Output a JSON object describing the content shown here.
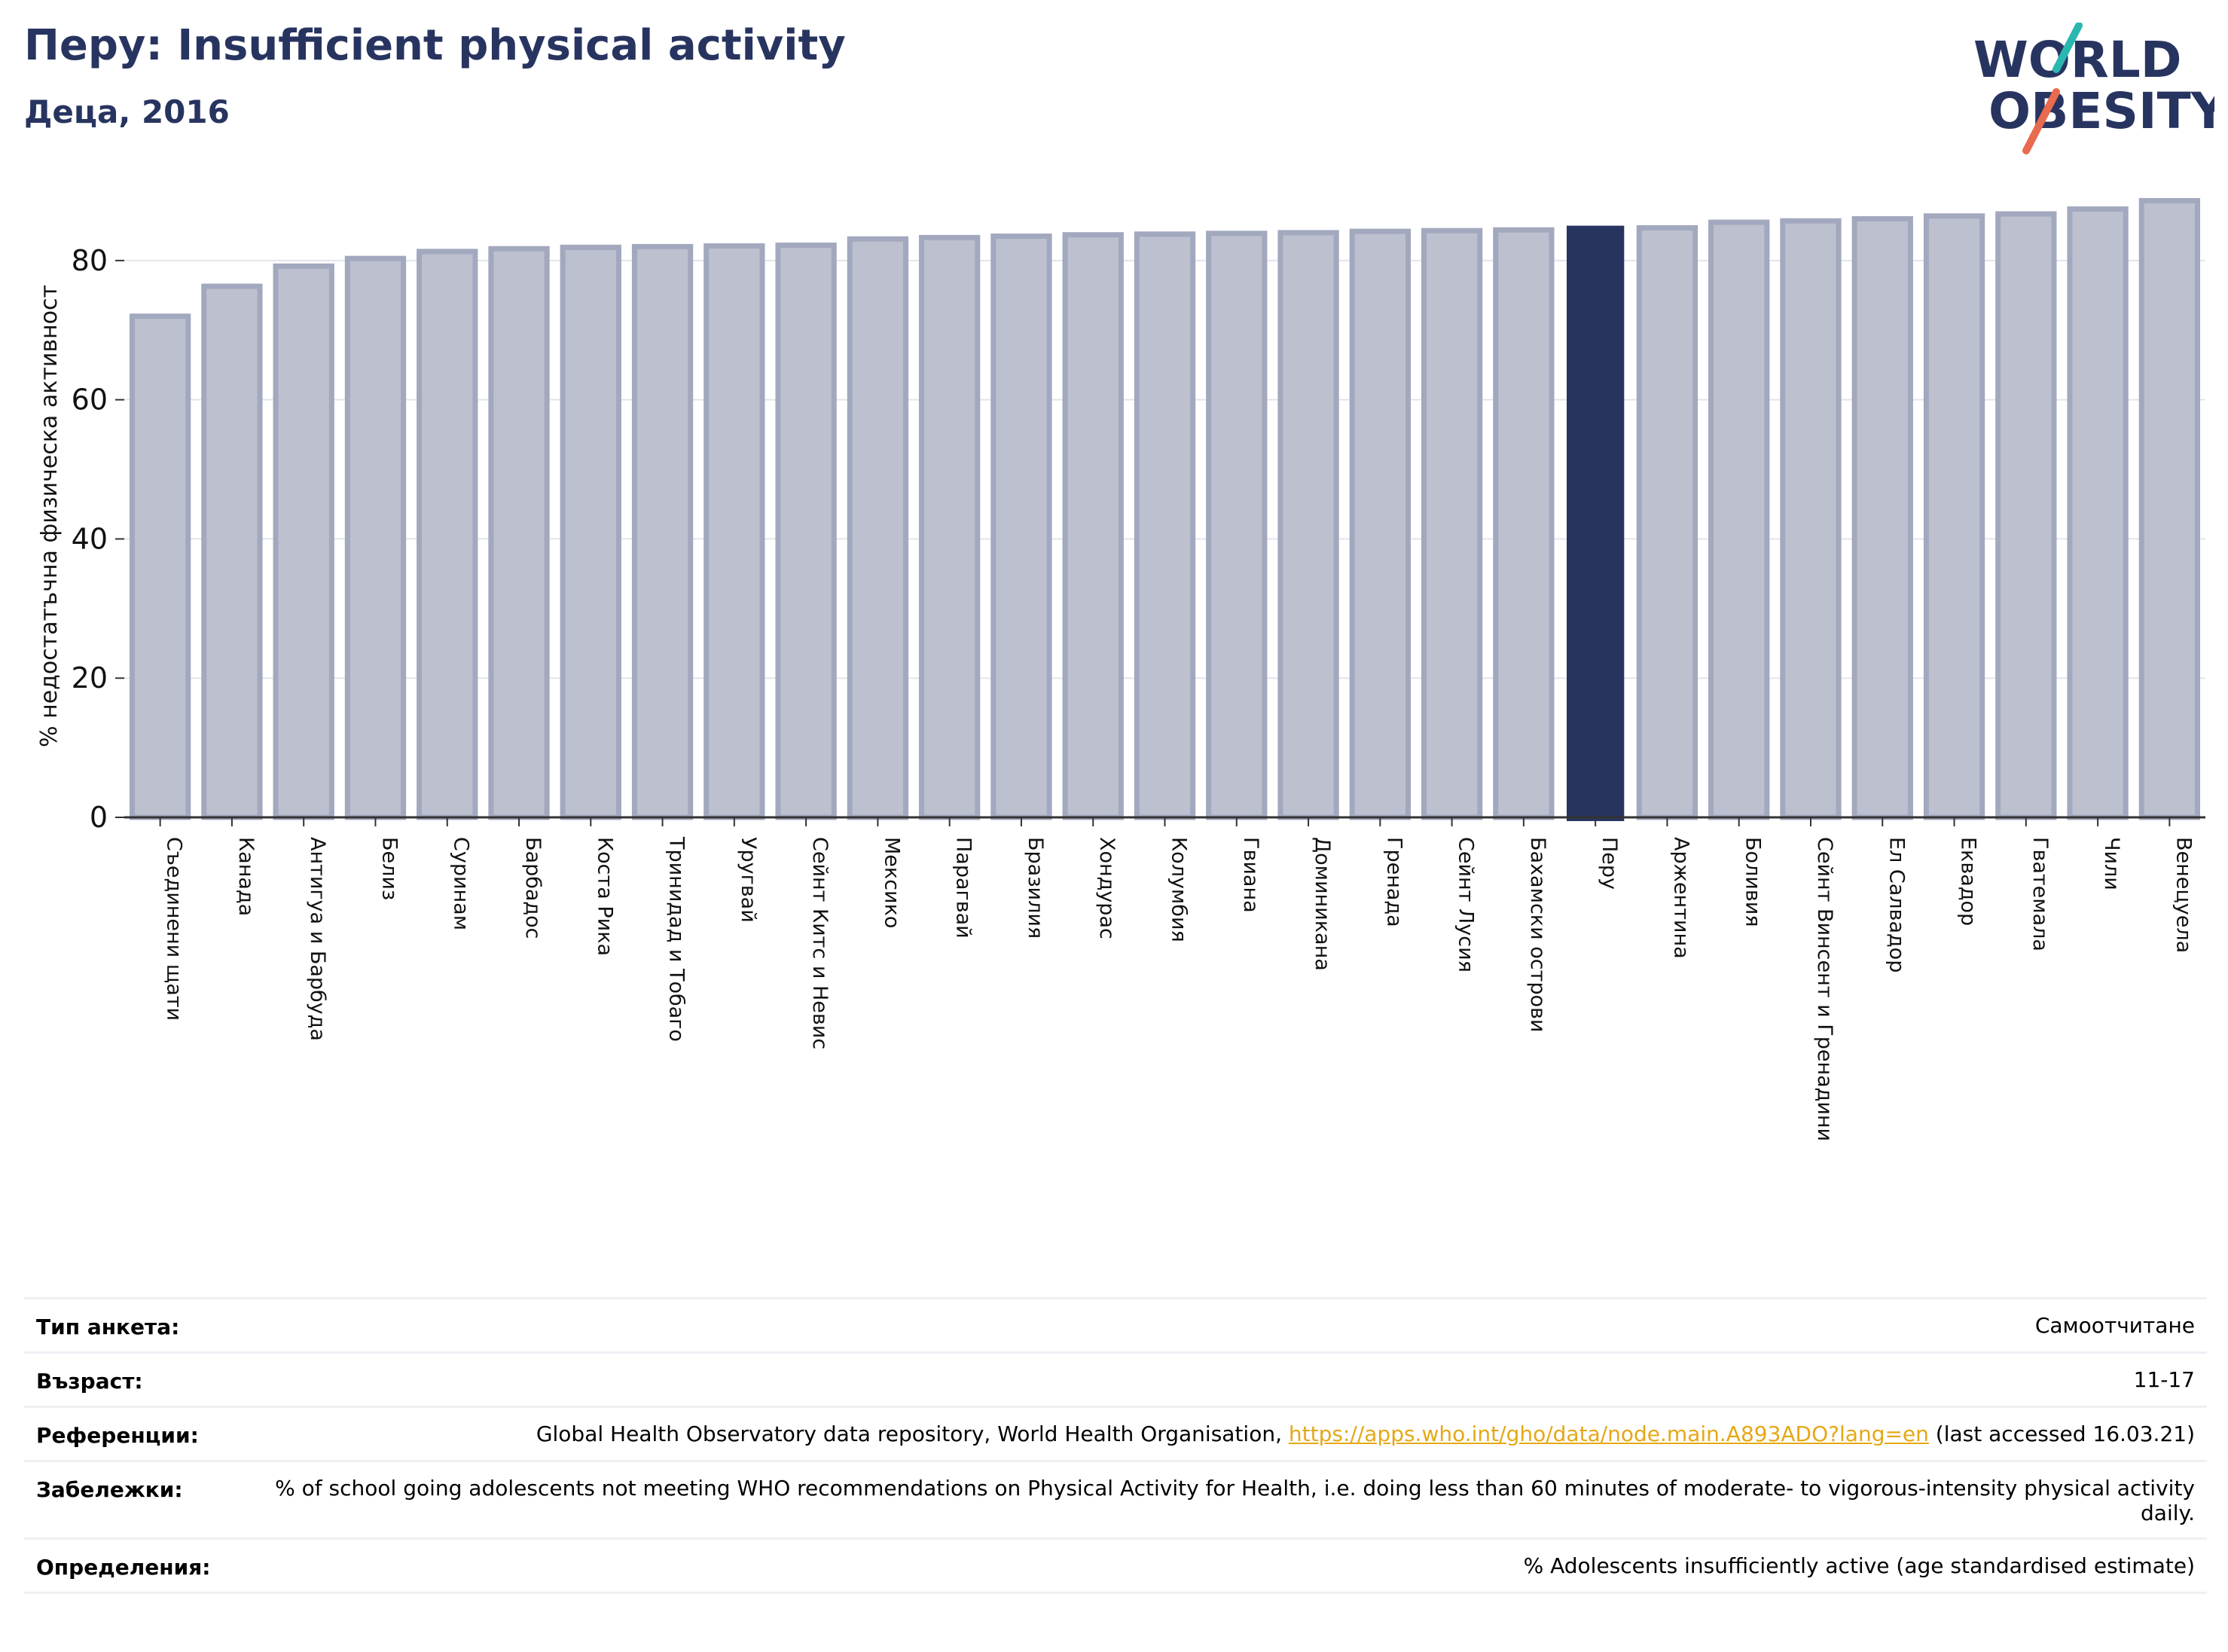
{
  "title": "Перу: Insufficient physical activity",
  "subtitle": "Деца, 2016",
  "logo": {
    "line1": "WORLD",
    "line2": "OBESITY"
  },
  "colors": {
    "bar_fill": "#bcc0cf",
    "bar_edge": "#a2a8be",
    "highlight": "#283460",
    "text_dark": "#283460",
    "link": "#e5a815",
    "logo_teal": "#2ab7b0",
    "logo_red": "#e86a4f"
  },
  "chart_data": {
    "type": "bar",
    "ylabel": "% недостатъчна физическа активност",
    "ylim": [
      0,
      92
    ],
    "yticks": [
      0,
      20,
      40,
      60,
      80
    ],
    "grid": true,
    "highlight_category": "Перу",
    "categories": [
      "Съединени щати",
      "Канада",
      "Антигуа и Барбуда",
      "Белиз",
      "Суринам",
      "Барбадос",
      "Коста Рика",
      "Тринидад и Тобаго",
      "Уругвай",
      "Сейнт Китс и Невис",
      "Мексико",
      "Парагвай",
      "Бразилия",
      "Хондурас",
      "Колумбия",
      "Гвиана",
      "Доминикана",
      "Гренада",
      "Сейнт Лусия",
      "Бахамски острови",
      "Перу",
      "Аржентина",
      "Боливия",
      "Сейнт Винсент и Гренадини",
      "Ел Салвадор",
      "Еквадор",
      "Гватемала",
      "Чили",
      "Венецуела"
    ],
    "values": [
      72.0,
      76.3,
      79.2,
      80.3,
      81.3,
      81.7,
      81.9,
      82.0,
      82.1,
      82.2,
      83.1,
      83.3,
      83.5,
      83.7,
      83.8,
      83.9,
      84.0,
      84.2,
      84.3,
      84.4,
      84.9,
      84.7,
      85.5,
      85.7,
      86.0,
      86.4,
      86.7,
      87.4,
      88.6
    ]
  },
  "footer": {
    "rows": [
      {
        "key": "Тип анкета:",
        "value": "Самоотчитане"
      },
      {
        "key": "Възраст:",
        "value": "11-17"
      },
      {
        "key": "Референции:",
        "value_pre": "Global Health Observatory data repository, World Health Organisation, ",
        "link": "https://apps.who.int/gho/data/node.main.A893ADO?lang=en",
        "value_post": " (last accessed 16.03.21)"
      },
      {
        "key": "Забележки:",
        "value": "% of school going adolescents not meeting WHO recommendations on Physical Activity for Health, i.e. doing less than 60 minutes of moderate- to vigorous-intensity physical activity daily."
      },
      {
        "key": "Определения:",
        "value": "% Adolescents insufficiently active (age standardised estimate)"
      }
    ]
  }
}
